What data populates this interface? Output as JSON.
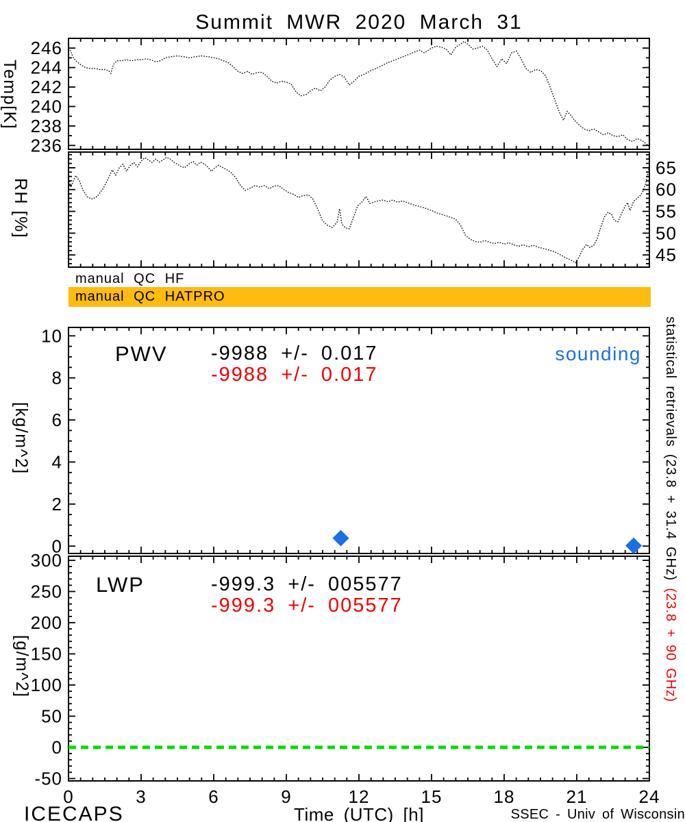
{
  "title": "Summit MWR 2020 March 31",
  "colors": {
    "black": "#000000",
    "red": "#ef0000",
    "blue": "#1a6fe6",
    "orange": "#ffbb0f",
    "green": "#00dd00"
  },
  "qc": {
    "hf_label": "manual QC HF",
    "hatpro_label": "manual QC HATPRO"
  },
  "right_margin_note": {
    "black": "statistical retrievals (23.8 + 31.4 GHz)",
    "red": "(23.8 + 90 GHz)"
  },
  "footer": {
    "left": "ICECAPS",
    "xlabel": "Time (UTC) [h]",
    "right": "SSEC - Univ of Wisconsin"
  },
  "xaxis": {
    "lim": [
      0,
      24
    ],
    "ticks": [
      0,
      3,
      6,
      9,
      12,
      15,
      18,
      21,
      24
    ],
    "minor_step": 0.5
  },
  "chart_data": [
    {
      "name": "temperature",
      "type": "line",
      "line_style": "dotted",
      "series_color": "black",
      "ylabel": "Temp[K]",
      "ylim": [
        235.6,
        247.0
      ],
      "yticks": [
        236,
        238,
        240,
        242,
        244,
        246
      ],
      "yminor_step": 1,
      "ytick_side": "left",
      "points": [
        [
          0,
          246.3
        ],
        [
          0.1,
          245.6
        ],
        [
          0.2,
          245.0
        ],
        [
          0.35,
          244.6
        ],
        [
          0.5,
          244.3
        ],
        [
          0.7,
          244.0
        ],
        [
          0.9,
          243.9
        ],
        [
          1.1,
          243.9
        ],
        [
          1.3,
          243.8
        ],
        [
          1.5,
          243.8
        ],
        [
          1.65,
          243.7
        ],
        [
          1.75,
          243.4
        ],
        [
          1.85,
          244.3
        ],
        [
          2.0,
          244.7
        ],
        [
          2.2,
          244.7
        ],
        [
          2.4,
          244.8
        ],
        [
          2.6,
          244.7
        ],
        [
          2.8,
          244.8
        ],
        [
          3.0,
          244.8
        ],
        [
          3.2,
          244.9
        ],
        [
          3.4,
          244.8
        ],
        [
          3.6,
          244.6
        ],
        [
          3.8,
          244.7
        ],
        [
          4.0,
          245.0
        ],
        [
          4.2,
          245.1
        ],
        [
          4.5,
          245.2
        ],
        [
          4.8,
          245.1
        ],
        [
          5.0,
          245.0
        ],
        [
          5.2,
          245.1
        ],
        [
          5.5,
          245.2
        ],
        [
          5.8,
          245.1
        ],
        [
          6.0,
          245.0
        ],
        [
          6.2,
          244.9
        ],
        [
          6.4,
          244.7
        ],
        [
          6.6,
          244.5
        ],
        [
          6.8,
          244.1
        ],
        [
          7.0,
          243.6
        ],
        [
          7.2,
          243.4
        ],
        [
          7.4,
          243.6
        ],
        [
          7.6,
          243.3
        ],
        [
          7.8,
          243.5
        ],
        [
          8.0,
          243.5
        ],
        [
          8.2,
          243.1
        ],
        [
          8.4,
          242.6
        ],
        [
          8.6,
          242.4
        ],
        [
          8.8,
          242.6
        ],
        [
          9.0,
          242.5
        ],
        [
          9.2,
          242.3
        ],
        [
          9.4,
          241.5
        ],
        [
          9.6,
          241.1
        ],
        [
          9.8,
          241.2
        ],
        [
          10.0,
          241.6
        ],
        [
          10.2,
          241.9
        ],
        [
          10.4,
          241.6
        ],
        [
          10.6,
          242.0
        ],
        [
          10.8,
          242.7
        ],
        [
          11.0,
          243.1
        ],
        [
          11.2,
          243.3
        ],
        [
          11.4,
          243.0
        ],
        [
          11.6,
          242.2
        ],
        [
          11.8,
          242.6
        ],
        [
          12.0,
          243.1
        ],
        [
          12.2,
          243.3
        ],
        [
          12.5,
          243.7
        ],
        [
          12.8,
          244.0
        ],
        [
          13.1,
          244.4
        ],
        [
          13.4,
          244.7
        ],
        [
          13.7,
          245.0
        ],
        [
          14.0,
          245.3
        ],
        [
          14.3,
          245.6
        ],
        [
          14.5,
          245.8
        ],
        [
          14.7,
          245.5
        ],
        [
          15.0,
          246.0
        ],
        [
          15.2,
          246.2
        ],
        [
          15.4,
          246.1
        ],
        [
          15.6,
          245.9
        ],
        [
          15.8,
          245.3
        ],
        [
          16.0,
          246.1
        ],
        [
          16.2,
          246.4
        ],
        [
          16.35,
          246.7
        ],
        [
          16.5,
          246.4
        ],
        [
          16.7,
          245.9
        ],
        [
          16.9,
          246.0
        ],
        [
          17.1,
          246.2
        ],
        [
          17.3,
          245.8
        ],
        [
          17.5,
          244.9
        ],
        [
          17.7,
          244.1
        ],
        [
          17.9,
          244.9
        ],
        [
          18.1,
          244.4
        ],
        [
          18.3,
          245.5
        ],
        [
          18.5,
          245.7
        ],
        [
          18.7,
          244.9
        ],
        [
          18.9,
          243.9
        ],
        [
          19.1,
          243.5
        ],
        [
          19.3,
          243.8
        ],
        [
          19.5,
          243.7
        ],
        [
          19.7,
          243.2
        ],
        [
          19.9,
          242.0
        ],
        [
          20.1,
          240.6
        ],
        [
          20.3,
          239.3
        ],
        [
          20.45,
          238.6
        ],
        [
          20.6,
          239.5
        ],
        [
          20.75,
          239.1
        ],
        [
          20.9,
          238.6
        ],
        [
          21.1,
          238.1
        ],
        [
          21.3,
          237.7
        ],
        [
          21.5,
          237.5
        ],
        [
          21.7,
          237.7
        ],
        [
          21.9,
          237.4
        ],
        [
          22.1,
          237.1
        ],
        [
          22.3,
          237.3
        ],
        [
          22.5,
          237.0
        ],
        [
          22.7,
          236.9
        ],
        [
          22.9,
          237.1
        ],
        [
          23.1,
          236.6
        ],
        [
          23.3,
          236.4
        ],
        [
          23.5,
          236.7
        ],
        [
          23.7,
          236.5
        ],
        [
          23.85,
          236.2
        ],
        [
          24,
          235.9
        ]
      ]
    },
    {
      "name": "relative-humidity",
      "type": "line",
      "line_style": "dotted",
      "series_color": "black",
      "ylabel": "RH [%]",
      "ylim": [
        42.2,
        68.6
      ],
      "yticks": [
        45,
        50,
        55,
        60,
        65
      ],
      "yminor_step": 1,
      "ytick_side": "right",
      "points": [
        [
          0,
          62.5
        ],
        [
          0.1,
          60.5
        ],
        [
          0.2,
          62.0
        ],
        [
          0.3,
          63.2
        ],
        [
          0.45,
          62.0
        ],
        [
          0.6,
          59.8
        ],
        [
          0.8,
          58.2
        ],
        [
          1.0,
          57.8
        ],
        [
          1.2,
          58.5
        ],
        [
          1.4,
          60.0
        ],
        [
          1.6,
          62.0
        ],
        [
          1.8,
          64.5
        ],
        [
          1.95,
          63.3
        ],
        [
          2.1,
          65.0
        ],
        [
          2.25,
          65.8
        ],
        [
          2.4,
          64.2
        ],
        [
          2.55,
          65.5
        ],
        [
          2.7,
          66.2
        ],
        [
          2.85,
          65.2
        ],
        [
          3.0,
          66.5
        ],
        [
          3.15,
          67.3
        ],
        [
          3.3,
          66.8
        ],
        [
          3.45,
          66.2
        ],
        [
          3.6,
          67.0
        ],
        [
          3.75,
          66.3
        ],
        [
          3.9,
          66.8
        ],
        [
          4.05,
          67.4
        ],
        [
          4.2,
          67.0
        ],
        [
          4.35,
          66.3
        ],
        [
          4.5,
          65.8
        ],
        [
          4.65,
          65.3
        ],
        [
          4.8,
          65.0
        ],
        [
          5.0,
          66.0
        ],
        [
          5.15,
          66.4
        ],
        [
          5.3,
          65.6
        ],
        [
          5.45,
          66.3
        ],
        [
          5.6,
          65.9
        ],
        [
          5.75,
          65.2
        ],
        [
          5.9,
          64.2
        ],
        [
          6.05,
          65.0
        ],
        [
          6.2,
          65.6
        ],
        [
          6.35,
          65.1
        ],
        [
          6.5,
          64.7
        ],
        [
          6.7,
          64.0
        ],
        [
          6.9,
          62.8
        ],
        [
          7.1,
          61.0
        ],
        [
          7.3,
          59.8
        ],
        [
          7.5,
          60.3
        ],
        [
          7.7,
          60.9
        ],
        [
          7.9,
          60.6
        ],
        [
          8.1,
          60.9
        ],
        [
          8.3,
          60.2
        ],
        [
          8.5,
          60.8
        ],
        [
          8.7,
          60.9
        ],
        [
          8.9,
          60.0
        ],
        [
          9.1,
          59.3
        ],
        [
          9.3,
          58.9
        ],
        [
          9.5,
          58.2
        ],
        [
          9.7,
          58.6
        ],
        [
          9.9,
          58.8
        ],
        [
          10.1,
          57.8
        ],
        [
          10.3,
          55.5
        ],
        [
          10.5,
          52.8
        ],
        [
          10.7,
          51.8
        ],
        [
          10.9,
          51.3
        ],
        [
          11.1,
          52.5
        ],
        [
          11.2,
          55.6
        ],
        [
          11.3,
          52.0
        ],
        [
          11.45,
          51.2
        ],
        [
          11.6,
          51.0
        ],
        [
          11.8,
          54.0
        ],
        [
          11.95,
          56.3
        ],
        [
          12.1,
          57.0
        ],
        [
          12.3,
          58.4
        ],
        [
          12.45,
          56.8
        ],
        [
          12.6,
          57.1
        ],
        [
          12.8,
          57.4
        ],
        [
          13.0,
          57.6
        ],
        [
          13.2,
          57.2
        ],
        [
          13.4,
          57.6
        ],
        [
          13.6,
          57.1
        ],
        [
          13.8,
          57.4
        ],
        [
          14.0,
          57.0
        ],
        [
          14.2,
          56.6
        ],
        [
          14.4,
          56.3
        ],
        [
          14.6,
          56.0
        ],
        [
          14.8,
          55.6
        ],
        [
          15.0,
          55.2
        ],
        [
          15.2,
          54.7
        ],
        [
          15.4,
          54.3
        ],
        [
          15.6,
          54.0
        ],
        [
          15.8,
          53.6
        ],
        [
          16.0,
          53.2
        ],
        [
          16.2,
          51.8
        ],
        [
          16.4,
          49.5
        ],
        [
          16.6,
          48.6
        ],
        [
          16.8,
          48.1
        ],
        [
          17.0,
          47.9
        ],
        [
          17.2,
          48.3
        ],
        [
          17.4,
          47.9
        ],
        [
          17.6,
          47.6
        ],
        [
          17.8,
          47.9
        ],
        [
          18.0,
          47.5
        ],
        [
          18.2,
          47.8
        ],
        [
          18.4,
          47.3
        ],
        [
          18.6,
          47.0
        ],
        [
          18.8,
          47.3
        ],
        [
          19.0,
          46.9
        ],
        [
          19.2,
          47.2
        ],
        [
          19.4,
          46.8
        ],
        [
          19.6,
          46.5
        ],
        [
          19.8,
          46.2
        ],
        [
          20.0,
          45.9
        ],
        [
          20.2,
          45.4
        ],
        [
          20.4,
          44.8
        ],
        [
          20.6,
          44.2
        ],
        [
          20.8,
          43.7
        ],
        [
          20.95,
          43.2
        ],
        [
          21.1,
          44.6
        ],
        [
          21.25,
          46.3
        ],
        [
          21.4,
          47.4
        ],
        [
          21.55,
          46.7
        ],
        [
          21.7,
          47.2
        ],
        [
          21.85,
          48.8
        ],
        [
          22.0,
          51.5
        ],
        [
          22.15,
          53.8
        ],
        [
          22.3,
          54.8
        ],
        [
          22.45,
          54.2
        ],
        [
          22.55,
          52.9
        ],
        [
          22.7,
          52.6
        ],
        [
          22.85,
          54.5
        ],
        [
          23.0,
          56.2
        ],
        [
          23.1,
          57.0
        ],
        [
          23.2,
          55.2
        ],
        [
          23.35,
          57.3
        ],
        [
          23.5,
          58.0
        ],
        [
          23.65,
          58.8
        ],
        [
          23.75,
          59.8
        ],
        [
          23.85,
          61.5
        ],
        [
          23.95,
          64.0
        ],
        [
          24,
          65.6
        ]
      ]
    },
    {
      "name": "pwv",
      "type": "scatter",
      "marker": "diamond",
      "marker_color": "blue",
      "ylabel": "[kg/m^2]",
      "ylim": [
        -0.35,
        10.4
      ],
      "yticks": [
        0,
        2,
        4,
        6,
        8,
        10
      ],
      "yminor_step": 0.5,
      "ytick_side": "left",
      "points": [
        [
          11.25,
          0.38
        ],
        [
          23.35,
          0.02
        ]
      ],
      "annotations": {
        "label": "PWV",
        "stat_black": "-9988 +/- 0.017",
        "stat_red": "-9988 +/- 0.017",
        "legend": "sounding"
      }
    },
    {
      "name": "lwp",
      "type": "scatter",
      "marker": "none",
      "ylabel": "[g/m^2]",
      "ylim": [
        -53.8,
        306.6
      ],
      "yticks": [
        -50,
        0,
        50,
        100,
        150,
        200,
        250,
        300
      ],
      "yminor_step": 10,
      "ytick_side": "left",
      "points": [],
      "zero_line": {
        "value": 0,
        "color": "green",
        "style": "dashed"
      },
      "annotations": {
        "label": "LWP",
        "stat_black": "-999.3 +/- 005577",
        "stat_red": "-999.3 +/- 005577"
      }
    }
  ]
}
